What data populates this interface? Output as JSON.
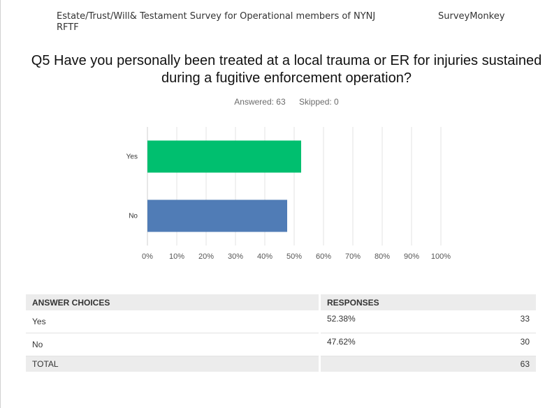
{
  "header": {
    "survey_title": "Estate/Trust/Will& Testament Survey for Operational members of NYNJ RFTF",
    "brand": "SurveyMonkey"
  },
  "question": "Q5 Have you personally been treated at a local trauma or ER for injuries sustained during a fugitive enforcement operation?",
  "stats": {
    "answered": "Answered: 63",
    "skipped": "Skipped: 0"
  },
  "chart_data": {
    "type": "bar",
    "orientation": "horizontal",
    "categories": [
      "Yes",
      "No"
    ],
    "values": [
      52.38,
      47.62
    ],
    "colors": [
      "#00bf6f",
      "#507cb6"
    ],
    "xlim": [
      0,
      100
    ],
    "x_ticks": [
      "0%",
      "10%",
      "20%",
      "30%",
      "40%",
      "50%",
      "60%",
      "70%",
      "80%",
      "90%",
      "100%"
    ],
    "grid": true,
    "title": "",
    "xlabel": "",
    "ylabel": ""
  },
  "table": {
    "headers": {
      "choices": "ANSWER CHOICES",
      "responses": "RESPONSES"
    },
    "rows": [
      {
        "choice": "Yes",
        "percent": "52.38%",
        "count": "33"
      },
      {
        "choice": "No",
        "percent": "47.62%",
        "count": "30"
      }
    ],
    "total": {
      "label": "TOTAL",
      "count": "63"
    }
  }
}
